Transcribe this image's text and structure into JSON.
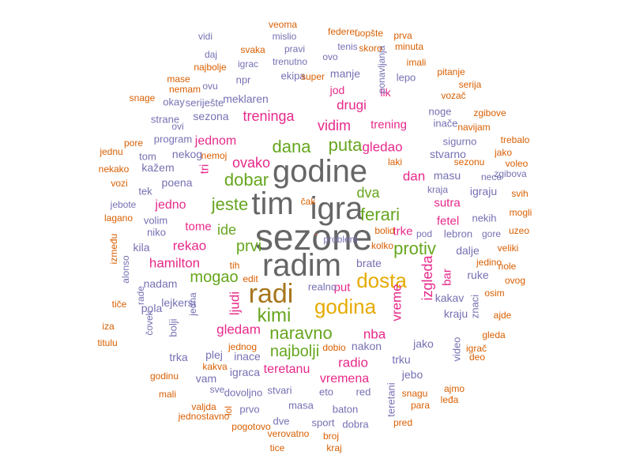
{
  "colors": {
    "gray": "#666666",
    "pink": "#e7298a",
    "green": "#66a61e",
    "gold": "#e6ab02",
    "brown": "#a6761d",
    "purple": "#7570b3",
    "orange": "#d95f02"
  },
  "words": [
    {
      "text": "sezone",
      "color": "gray",
      "weight": 100
    },
    {
      "text": "igra",
      "color": "gray",
      "weight": 80
    },
    {
      "text": "tim",
      "color": "gray",
      "weight": 78
    },
    {
      "text": "godine",
      "color": "gray",
      "weight": 78
    },
    {
      "text": "radim",
      "color": "gray",
      "weight": 78
    },
    {
      "text": "radi",
      "color": "brown",
      "weight": 68
    },
    {
      "text": "godina",
      "color": "gold",
      "weight": 52
    },
    {
      "text": "dosta",
      "color": "gold",
      "weight": 52
    },
    {
      "text": "kimi",
      "color": "green",
      "weight": 45
    },
    {
      "text": "naravno",
      "color": "green",
      "weight": 45
    },
    {
      "text": "jeste",
      "color": "green",
      "weight": 42
    },
    {
      "text": "dobar",
      "color": "green",
      "weight": 42
    },
    {
      "text": "dana",
      "color": "green",
      "weight": 40
    },
    {
      "text": "puta",
      "color": "green",
      "weight": 40
    },
    {
      "text": "ferari",
      "color": "green",
      "weight": 40
    },
    {
      "text": "protiv",
      "color": "green",
      "weight": 40
    },
    {
      "text": "najbolji",
      "color": "green",
      "weight": 38
    },
    {
      "text": "mogao",
      "color": "green",
      "weight": 36
    },
    {
      "text": "prvi",
      "color": "green",
      "weight": 36
    },
    {
      "text": "dva",
      "color": "green",
      "weight": 34
    },
    {
      "text": "ide",
      "color": "green",
      "weight": 34
    },
    {
      "text": "gledao",
      "color": "pink",
      "weight": 34
    },
    {
      "text": "treninga",
      "color": "pink",
      "weight": 34
    },
    {
      "text": "ovako",
      "color": "pink",
      "weight": 34
    },
    {
      "text": "vidim",
      "color": "pink",
      "weight": 34
    },
    {
      "text": "izgleda",
      "color": "pink",
      "weight": 32
    },
    {
      "text": "gledam",
      "color": "pink",
      "weight": 32
    },
    {
      "text": "nba",
      "color": "pink",
      "weight": 32
    },
    {
      "text": "ljudi",
      "color": "pink",
      "weight": 32
    },
    {
      "text": "vreme",
      "color": "pink",
      "weight": 30
    },
    {
      "text": "radio",
      "color": "pink",
      "weight": 30
    },
    {
      "text": "hamilton",
      "color": "pink",
      "weight": 30
    },
    {
      "text": "rekao",
      "color": "pink",
      "weight": 30
    },
    {
      "text": "drugi",
      "color": "pink",
      "weight": 30
    },
    {
      "text": "dan",
      "color": "pink",
      "weight": 30
    },
    {
      "text": "vremena",
      "color": "pink",
      "weight": 28
    },
    {
      "text": "jednom",
      "color": "pink",
      "weight": 28
    },
    {
      "text": "teretanu",
      "color": "pink",
      "weight": 28
    },
    {
      "text": "jedno",
      "color": "pink",
      "weight": 28
    },
    {
      "text": "trening",
      "color": "pink",
      "weight": 26
    },
    {
      "text": "sutra",
      "color": "pink",
      "weight": 26
    },
    {
      "text": "fetel",
      "color": "pink",
      "weight": 26
    },
    {
      "text": "tome",
      "color": "pink",
      "weight": 26
    },
    {
      "text": "trke",
      "color": "pink",
      "weight": 26
    },
    {
      "text": "tri",
      "color": "pink",
      "weight": 26
    },
    {
      "text": "bar",
      "color": "pink",
      "weight": 26
    },
    {
      "text": "put",
      "color": "pink",
      "weight": 24
    },
    {
      "text": "jod",
      "color": "pink",
      "weight": 24
    },
    {
      "text": "lik",
      "color": "pink",
      "weight": 24
    },
    {
      "text": "manje",
      "color": "purple",
      "weight": 22
    },
    {
      "text": "meklaren",
      "color": "purple",
      "weight": 22
    },
    {
      "text": "sezona",
      "color": "purple",
      "weight": 22
    },
    {
      "text": "stvarno",
      "color": "purple",
      "weight": 22
    },
    {
      "text": "masu",
      "color": "purple",
      "weight": 22
    },
    {
      "text": "igraju",
      "color": "purple",
      "weight": 22
    },
    {
      "text": "nekog",
      "color": "purple",
      "weight": 22
    },
    {
      "text": "poena",
      "color": "purple",
      "weight": 20
    },
    {
      "text": "brate",
      "color": "purple",
      "weight": 22
    },
    {
      "text": "dalje",
      "color": "purple",
      "weight": 22
    },
    {
      "text": "ruke",
      "color": "purple",
      "weight": 22
    },
    {
      "text": "kakav",
      "color": "purple",
      "weight": 22
    },
    {
      "text": "kraju",
      "color": "purple",
      "weight": 20
    },
    {
      "text": "jako",
      "color": "purple",
      "weight": 22
    },
    {
      "text": "trku",
      "color": "purple",
      "weight": 22
    },
    {
      "text": "jebo",
      "color": "purple",
      "weight": 20
    },
    {
      "text": "nakon",
      "color": "purple",
      "weight": 22
    },
    {
      "text": "igraca",
      "color": "purple",
      "weight": 20
    },
    {
      "text": "inace",
      "color": "purple",
      "weight": 20
    },
    {
      "text": "plej",
      "color": "purple",
      "weight": 22
    },
    {
      "text": "vam",
      "color": "purple",
      "weight": 20
    },
    {
      "text": "trka",
      "color": "purple",
      "weight": 22
    },
    {
      "text": "nadam",
      "color": "purple",
      "weight": 20
    },
    {
      "text": "lejkersi",
      "color": "purple",
      "weight": 20
    },
    {
      "text": "pola",
      "color": "purple",
      "weight": 20
    },
    {
      "text": "bolji",
      "color": "purple",
      "weight": 20
    },
    {
      "text": "kila",
      "color": "purple",
      "weight": 20
    },
    {
      "text": "niko",
      "color": "purple",
      "weight": 20
    },
    {
      "text": "volim",
      "color": "purple",
      "weight": 20
    },
    {
      "text": "tek",
      "color": "purple",
      "weight": 20
    },
    {
      "text": "kažem",
      "color": "purple",
      "weight": 18
    },
    {
      "text": "tom",
      "color": "purple",
      "weight": 18
    },
    {
      "text": "program",
      "color": "purple",
      "weight": 20
    },
    {
      "text": "strane",
      "color": "purple",
      "weight": 18
    },
    {
      "text": "okay",
      "color": "purple",
      "weight": 18
    },
    {
      "text": "seriješte",
      "color": "purple",
      "weight": 18
    },
    {
      "text": "ekipa",
      "color": "purple",
      "weight": 18
    },
    {
      "text": "npr",
      "color": "purple",
      "weight": 20
    },
    {
      "text": "lepo",
      "color": "purple",
      "weight": 20
    },
    {
      "text": "inače",
      "color": "purple",
      "weight": 20
    },
    {
      "text": "noge",
      "color": "purple",
      "weight": 20
    },
    {
      "text": "sigurno",
      "color": "purple",
      "weight": 20
    },
    {
      "text": "nekih",
      "color": "purple",
      "weight": 20
    },
    {
      "text": "lebron",
      "color": "purple",
      "weight": 20
    },
    {
      "text": "pod",
      "color": "purple",
      "weight": 20
    },
    {
      "text": "realno",
      "color": "purple",
      "weight": 20
    },
    {
      "text": "eto",
      "color": "purple",
      "weight": 18
    },
    {
      "text": "red",
      "color": "purple",
      "weight": 20
    },
    {
      "text": "stvari",
      "color": "purple",
      "weight": 20
    },
    {
      "text": "masa",
      "color": "purple",
      "weight": 20
    },
    {
      "text": "baton",
      "color": "purple",
      "weight": 20
    },
    {
      "text": "teretani",
      "color": "purple",
      "weight": 20
    },
    {
      "text": "dovoljno",
      "color": "purple",
      "weight": 20
    },
    {
      "text": "prvo",
      "color": "purple",
      "weight": 20
    },
    {
      "text": "dve",
      "color": "purple",
      "weight": 18
    },
    {
      "text": "sport",
      "color": "purple",
      "weight": 18
    },
    {
      "text": "dobra",
      "color": "purple",
      "weight": 18
    },
    {
      "text": "gore",
      "color": "purple",
      "weight": 18
    },
    {
      "text": "znaci",
      "color": "purple",
      "weight": 18
    },
    {
      "text": "video",
      "color": "purple",
      "weight": 16
    },
    {
      "text": "problem",
      "color": "purple",
      "weight": 18
    },
    {
      "text": "trenutno",
      "color": "purple",
      "weight": 18
    },
    {
      "text": "ovo",
      "color": "purple",
      "weight": 16
    },
    {
      "text": "tenis",
      "color": "purple",
      "weight": 18
    },
    {
      "text": "igrac",
      "color": "purple",
      "weight": 18
    },
    {
      "text": "mislio",
      "color": "purple",
      "weight": 18
    },
    {
      "text": "pravi",
      "color": "purple",
      "weight": 18
    },
    {
      "text": "ponavljanja",
      "color": "purple",
      "weight": 18
    },
    {
      "text": "ovu",
      "color": "purple",
      "weight": 16
    },
    {
      "text": "kraja",
      "color": "purple",
      "weight": 16
    },
    {
      "text": "rade",
      "color": "purple",
      "weight": 18
    },
    {
      "text": "čovek",
      "color": "purple",
      "weight": 16
    },
    {
      "text": "alonso",
      "color": "purple",
      "weight": 16
    },
    {
      "text": "jedna",
      "color": "purple",
      "weight": 16
    },
    {
      "text": "jebote",
      "color": "purple",
      "weight": 16
    },
    {
      "text": "ovi",
      "color": "purple",
      "weight": 18
    },
    {
      "text": "zgibova",
      "color": "purple",
      "weight": 16
    },
    {
      "text": "sve",
      "color": "purple",
      "weight": 16
    },
    {
      "text": "nece",
      "color": "purple",
      "weight": 16
    },
    {
      "text": "vidi",
      "color": "purple",
      "weight": 16
    },
    {
      "text": "daj",
      "color": "purple",
      "weight": 16
    },
    {
      "text": "najbolje",
      "color": "orange",
      "weight": 16
    },
    {
      "text": "mase",
      "color": "orange",
      "weight": 16
    },
    {
      "text": "nemam",
      "color": "orange",
      "weight": 16
    },
    {
      "text": "snage",
      "color": "orange",
      "weight": 16
    },
    {
      "text": "svaka",
      "color": "orange",
      "weight": 16
    },
    {
      "text": "veoma",
      "color": "orange",
      "weight": 16
    },
    {
      "text": "federer",
      "color": "orange",
      "weight": 16
    },
    {
      "text": "uopšte",
      "color": "orange",
      "weight": 16
    },
    {
      "text": "prva",
      "color": "orange",
      "weight": 16
    },
    {
      "text": "skoro",
      "color": "orange",
      "weight": 16
    },
    {
      "text": "minuta",
      "color": "orange",
      "weight": 16
    },
    {
      "text": "imali",
      "color": "orange",
      "weight": 16
    },
    {
      "text": "pitanje",
      "color": "orange",
      "weight": 16
    },
    {
      "text": "serija",
      "color": "orange",
      "weight": 16
    },
    {
      "text": "vozač",
      "color": "orange",
      "weight": 16
    },
    {
      "text": "zgibove",
      "color": "orange",
      "weight": 16
    },
    {
      "text": "navijam",
      "color": "orange",
      "weight": 16
    },
    {
      "text": "trebalo",
      "color": "orange",
      "weight": 16
    },
    {
      "text": "jako",
      "color": "orange",
      "weight": 16
    },
    {
      "text": "sezonu",
      "color": "orange",
      "weight": 16
    },
    {
      "text": "voleo",
      "color": "orange",
      "weight": 16
    },
    {
      "text": "svih",
      "color": "orange",
      "weight": 16
    },
    {
      "text": "mogli",
      "color": "orange",
      "weight": 16
    },
    {
      "text": "uzeo",
      "color": "orange",
      "weight": 16
    },
    {
      "text": "veliki",
      "color": "orange",
      "weight": 16
    },
    {
      "text": "jedino",
      "color": "orange",
      "weight": 16
    },
    {
      "text": "nole",
      "color": "orange",
      "weight": 16
    },
    {
      "text": "ovog",
      "color": "orange",
      "weight": 16
    },
    {
      "text": "osim",
      "color": "orange",
      "weight": 16
    },
    {
      "text": "ajde",
      "color": "orange",
      "weight": 16
    },
    {
      "text": "gleda",
      "color": "orange",
      "weight": 16
    },
    {
      "text": "igrač",
      "color": "orange",
      "weight": 16
    },
    {
      "text": "deo",
      "color": "orange",
      "weight": 16
    },
    {
      "text": "ajmo",
      "color": "orange",
      "weight": 16
    },
    {
      "text": "leđa",
      "color": "orange",
      "weight": 16
    },
    {
      "text": "para",
      "color": "orange",
      "weight": 16
    },
    {
      "text": "pred",
      "color": "orange",
      "weight": 16
    },
    {
      "text": "snagu",
      "color": "orange",
      "weight": 16
    },
    {
      "text": "broj",
      "color": "orange",
      "weight": 16
    },
    {
      "text": "kraj",
      "color": "orange",
      "weight": 16
    },
    {
      "text": "tice",
      "color": "orange",
      "weight": 16
    },
    {
      "text": "verovatno",
      "color": "orange",
      "weight": 16
    },
    {
      "text": "pogotovo",
      "color": "orange",
      "weight": 16
    },
    {
      "text": "jednostavno",
      "color": "orange",
      "weight": 16
    },
    {
      "text": "valjda",
      "color": "orange",
      "weight": 16
    },
    {
      "text": "mali",
      "color": "orange",
      "weight": 16
    },
    {
      "text": "godinu",
      "color": "orange",
      "weight": 16
    },
    {
      "text": "kakva",
      "color": "orange",
      "weight": 16
    },
    {
      "text": "jednog",
      "color": "orange",
      "weight": 16
    },
    {
      "text": "dobio",
      "color": "orange",
      "weight": 16
    },
    {
      "text": "iza",
      "color": "orange",
      "weight": 16
    },
    {
      "text": "titulu",
      "color": "orange",
      "weight": 16
    },
    {
      "text": "tiče",
      "color": "orange",
      "weight": 16
    },
    {
      "text": "između",
      "color": "orange",
      "weight": 16
    },
    {
      "text": "lagano",
      "color": "orange",
      "weight": 16
    },
    {
      "text": "vozi",
      "color": "orange",
      "weight": 16
    },
    {
      "text": "nekako",
      "color": "orange",
      "weight": 16
    },
    {
      "text": "jednu",
      "color": "orange",
      "weight": 16
    },
    {
      "text": "pore",
      "color": "orange",
      "weight": 16
    },
    {
      "text": "nemoj",
      "color": "orange",
      "weight": 16
    },
    {
      "text": "super",
      "color": "orange",
      "weight": 16
    },
    {
      "text": "bolid",
      "color": "orange",
      "weight": 16
    },
    {
      "text": "laki",
      "color": "orange",
      "weight": 16
    },
    {
      "text": "tih",
      "color": "orange",
      "weight": 16
    },
    {
      "text": "lol",
      "color": "orange",
      "weight": 16
    },
    {
      "text": "edit",
      "color": "orange",
      "weight": 16
    },
    {
      "text": "kolko",
      "color": "orange",
      "weight": 16
    },
    {
      "text": "čak",
      "color": "orange",
      "weight": 16
    },
    {
      "text": "“",
      "color": "orange",
      "weight": 16
    },
    {
      "text": "”",
      "color": "purple",
      "weight": 16
    },
    {
      "text": "’",
      "color": "orange",
      "weight": 16
    }
  ]
}
